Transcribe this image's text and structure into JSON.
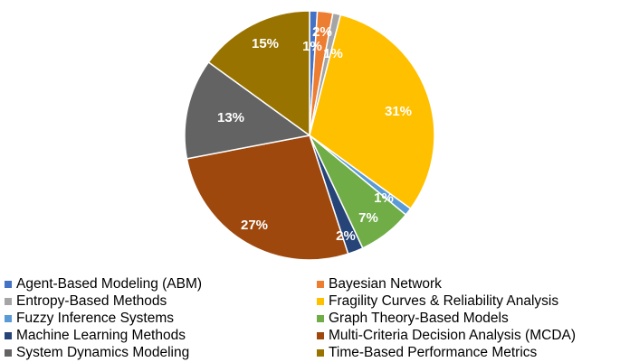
{
  "chart_data": {
    "type": "pie",
    "categories": [
      "Agent-Based Modeling (ABM)",
      "Bayesian Network",
      "Entropy-Based Methods",
      "Fragility Curves & Reliability Analysis",
      "Fuzzy Inference Systems",
      "Graph Theory-Based Models",
      "Machine Learning Methods",
      "Multi-Criteria Decision Analysis (MCDA)",
      "System Dynamics Modeling",
      "Time-Based Performance Metrics"
    ],
    "values": [
      1,
      2,
      1,
      31,
      1,
      7,
      2,
      27,
      13,
      15
    ],
    "labels": [
      "1%",
      "2%",
      "1%",
      "31%",
      "1%",
      "7%",
      "2%",
      "27%",
      "13%",
      "15%"
    ],
    "colors": [
      "#4472C4",
      "#ED7D31",
      "#A5A5A5",
      "#FFC000",
      "#5B9BD5",
      "#70AD47",
      "#264478",
      "#9E480E",
      "#636363",
      "#997300"
    ],
    "legend_placement": "bottom"
  }
}
